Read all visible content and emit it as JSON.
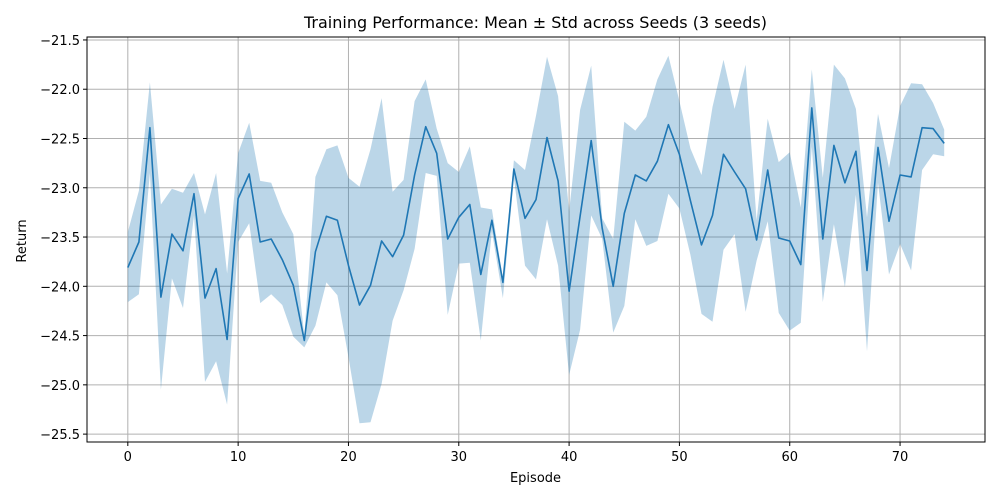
{
  "chart_data": {
    "type": "line",
    "title": "Training Performance: Mean ± Std across Seeds (3 seeds)",
    "xlabel": "Episode",
    "ylabel": "Return",
    "xlim": [
      -3.7,
      77.7
    ],
    "ylim": [
      -25.58,
      -21.47
    ],
    "xticks": [
      0,
      10,
      20,
      30,
      40,
      50,
      60,
      70
    ],
    "yticks": [
      -25.5,
      -25.0,
      -24.5,
      -24.0,
      -23.5,
      -23.0,
      -22.5,
      -22.0,
      -21.5
    ],
    "xtick_labels": [
      "0",
      "10",
      "20",
      "30",
      "40",
      "50",
      "60",
      "70"
    ],
    "ytick_labels": [
      "−25.5",
      "−25.0",
      "−24.5",
      "−24.0",
      "−23.5",
      "−23.0",
      "−22.5",
      "−22.0",
      "−21.5"
    ],
    "grid": true,
    "colors": {
      "line": "#1f77b4",
      "band": "#1f77b4",
      "grid": "#b0b0b0"
    },
    "series": [
      {
        "x": [
          0,
          1,
          2,
          3,
          4,
          5,
          6,
          7,
          8,
          9,
          10,
          11,
          12,
          13,
          14,
          15,
          16,
          17,
          18,
          19,
          20,
          21,
          22,
          23,
          24,
          25,
          26,
          27,
          28,
          29,
          30,
          31,
          32,
          33,
          34,
          35,
          36,
          37,
          38,
          39,
          40,
          41,
          42,
          43,
          44,
          45,
          46,
          47,
          48,
          49,
          50,
          51,
          52,
          53,
          54,
          55,
          56,
          57,
          58,
          59,
          60,
          61,
          62,
          63,
          64,
          65,
          66,
          67,
          68,
          69,
          70,
          71,
          72,
          73,
          74
        ],
        "mean": [
          -23.81,
          -23.55,
          -22.39,
          -24.11,
          -23.47,
          -23.64,
          -23.06,
          -24.12,
          -23.82,
          -24.54,
          -23.11,
          -22.86,
          -23.55,
          -23.52,
          -23.73,
          -23.99,
          -24.55,
          -23.65,
          -23.29,
          -23.33,
          -23.79,
          -24.19,
          -23.99,
          -23.54,
          -23.7,
          -23.48,
          -22.87,
          -22.38,
          -22.65,
          -23.52,
          -23.3,
          -23.17,
          -23.88,
          -23.33,
          -23.96,
          -22.81,
          -23.31,
          -23.12,
          -22.49,
          -22.93,
          -24.05,
          -23.29,
          -22.52,
          -23.41,
          -24.0,
          -23.26,
          -22.87,
          -22.93,
          -22.73,
          -22.36,
          -22.66,
          -23.13,
          -23.58,
          -23.28,
          -22.66,
          -22.84,
          -23.01,
          -23.53,
          -22.82,
          -23.51,
          -23.54,
          -23.78,
          -22.19,
          -23.52,
          -22.57,
          -22.95,
          -22.63,
          -23.84,
          -22.59,
          -23.34,
          -22.87,
          -22.89,
          -22.39,
          -22.4,
          -22.55
        ],
        "upper": [
          -23.45,
          -23.03,
          -21.93,
          -23.17,
          -23.01,
          -23.05,
          -22.85,
          -23.27,
          -22.85,
          -23.87,
          -22.65,
          -22.34,
          -22.93,
          -22.95,
          -23.25,
          -23.47,
          -24.5,
          -22.89,
          -22.61,
          -22.57,
          -22.9,
          -22.99,
          -22.61,
          -22.09,
          -23.04,
          -22.92,
          -22.12,
          -21.9,
          -22.4,
          -22.75,
          -22.84,
          -22.58,
          -23.2,
          -23.22,
          -23.92,
          -22.72,
          -22.82,
          -22.27,
          -21.67,
          -22.07,
          -23.24,
          -22.21,
          -21.76,
          -23.31,
          -23.52,
          -22.33,
          -22.42,
          -22.28,
          -21.9,
          -21.66,
          -22.12,
          -22.6,
          -22.87,
          -22.18,
          -21.7,
          -22.2,
          -21.75,
          -23.33,
          -22.3,
          -22.74,
          -22.64,
          -23.2,
          -21.8,
          -22.9,
          -21.75,
          -21.89,
          -22.2,
          -23.3,
          -22.25,
          -22.8,
          -22.17,
          -21.94,
          -21.95,
          -22.14,
          -22.41
        ],
        "lower": [
          -24.16,
          -24.08,
          -22.85,
          -25.05,
          -23.92,
          -24.22,
          -23.28,
          -24.97,
          -24.76,
          -25.2,
          -23.55,
          -23.36,
          -24.17,
          -24.08,
          -24.19,
          -24.51,
          -24.62,
          -24.4,
          -23.96,
          -24.09,
          -24.72,
          -25.39,
          -25.38,
          -24.99,
          -24.35,
          -24.04,
          -23.62,
          -22.85,
          -22.88,
          -24.29,
          -23.77,
          -23.76,
          -24.55,
          -23.44,
          -24.12,
          -22.9,
          -23.79,
          -23.93,
          -23.32,
          -23.79,
          -24.9,
          -24.44,
          -23.28,
          -23.52,
          -24.47,
          -24.2,
          -23.32,
          -23.59,
          -23.54,
          -23.06,
          -23.21,
          -23.68,
          -24.28,
          -24.36,
          -23.63,
          -23.47,
          -24.26,
          -23.74,
          -23.34,
          -24.27,
          -24.45,
          -24.37,
          -22.58,
          -24.16,
          -23.37,
          -24.01,
          -23.07,
          -24.66,
          -22.95,
          -23.88,
          -23.57,
          -23.84,
          -22.82,
          -22.66,
          -22.68
        ]
      }
    ]
  }
}
